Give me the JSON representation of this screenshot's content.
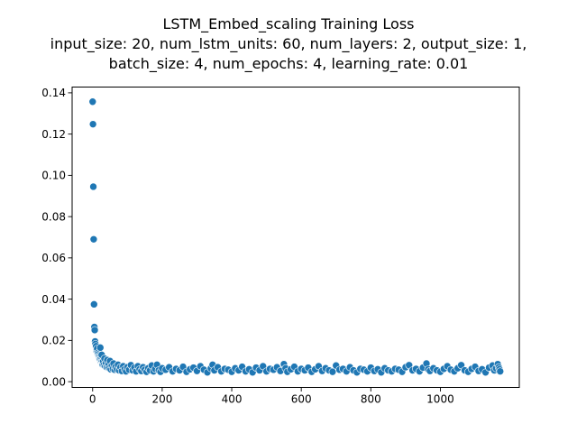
{
  "chart_data": {
    "type": "scatter",
    "title_lines": [
      "LSTM_Embed_scaling Training Loss",
      "input_size: 20, num_lstm_units: 60, num_layers: 2, output_size: 1,",
      "batch_size: 4, num_epochs: 4, learning_rate: 0.01"
    ],
    "xlabel": "",
    "ylabel": "",
    "xlim": [
      -59,
      1227
    ],
    "ylim": [
      -0.0028,
      0.1428
    ],
    "xticks": [
      0,
      200,
      400,
      600,
      800,
      1000
    ],
    "yticks": [
      0.0,
      0.02,
      0.04,
      0.06,
      0.08,
      0.1,
      0.12,
      0.14
    ],
    "ytick_labels": [
      "0.00",
      "0.02",
      "0.04",
      "0.06",
      "0.08",
      "0.10",
      "0.12",
      "0.14"
    ],
    "marker_color": "#1f77b4",
    "marker_edge": "#ffffff",
    "grid": false,
    "points": [
      [
        0,
        0.1357
      ],
      [
        1,
        0.1248
      ],
      [
        2,
        0.0945
      ],
      [
        3,
        0.069
      ],
      [
        4,
        0.0375
      ],
      [
        5,
        0.0265
      ],
      [
        6,
        0.025
      ],
      [
        7,
        0.0195
      ],
      [
        8,
        0.0183
      ],
      [
        9,
        0.017
      ],
      [
        10,
        0.0172
      ],
      [
        11,
        0.0152
      ],
      [
        12,
        0.0145
      ],
      [
        13,
        0.016
      ],
      [
        14,
        0.0138
      ],
      [
        15,
        0.0132
      ],
      [
        16,
        0.0125
      ],
      [
        17,
        0.012
      ],
      [
        18,
        0.0118
      ],
      [
        19,
        0.0112
      ],
      [
        20,
        0.0108
      ],
      [
        21,
        0.0105
      ],
      [
        22,
        0.0165
      ],
      [
        23,
        0.01
      ],
      [
        24,
        0.0095
      ],
      [
        25,
        0.0092
      ],
      [
        26,
        0.013
      ],
      [
        27,
        0.0088
      ],
      [
        28,
        0.0085
      ],
      [
        29,
        0.0082
      ],
      [
        30,
        0.0098
      ],
      [
        32,
        0.008
      ],
      [
        34,
        0.0112
      ],
      [
        36,
        0.0075
      ],
      [
        38,
        0.009
      ],
      [
        40,
        0.007
      ],
      [
        42,
        0.0105
      ],
      [
        44,
        0.0068
      ],
      [
        46,
        0.0085
      ],
      [
        48,
        0.0065
      ],
      [
        50,
        0.01
      ],
      [
        52,
        0.006
      ],
      [
        55,
        0.0078
      ],
      [
        58,
        0.0062
      ],
      [
        60,
        0.0088
      ],
      [
        63,
        0.0058
      ],
      [
        66,
        0.0072
      ],
      [
        70,
        0.006
      ],
      [
        73,
        0.0082
      ],
      [
        76,
        0.0055
      ],
      [
        80,
        0.007
      ],
      [
        84,
        0.0052
      ],
      [
        88,
        0.0075
      ],
      [
        92,
        0.006
      ],
      [
        96,
        0.005
      ],
      [
        100,
        0.007
      ],
      [
        105,
        0.0058
      ],
      [
        110,
        0.008
      ],
      [
        115,
        0.0055
      ],
      [
        120,
        0.0068
      ],
      [
        125,
        0.005
      ],
      [
        130,
        0.0075
      ],
      [
        135,
        0.006
      ],
      [
        140,
        0.0052
      ],
      [
        145,
        0.007
      ],
      [
        150,
        0.0058
      ],
      [
        155,
        0.0048
      ],
      [
        160,
        0.0065
      ],
      [
        165,
        0.0055
      ],
      [
        170,
        0.0078
      ],
      [
        175,
        0.005
      ],
      [
        180,
        0.0062
      ],
      [
        185,
        0.0082
      ],
      [
        190,
        0.0055
      ],
      [
        195,
        0.0048
      ],
      [
        200,
        0.0065
      ],
      [
        210,
        0.0058
      ],
      [
        220,
        0.007
      ],
      [
        230,
        0.005
      ],
      [
        240,
        0.0062
      ],
      [
        250,
        0.0055
      ],
      [
        260,
        0.0072
      ],
      [
        270,
        0.0048
      ],
      [
        280,
        0.006
      ],
      [
        290,
        0.0068
      ],
      [
        300,
        0.0052
      ],
      [
        310,
        0.0075
      ],
      [
        320,
        0.0058
      ],
      [
        330,
        0.0045
      ],
      [
        340,
        0.0065
      ],
      [
        345,
        0.0082
      ],
      [
        350,
        0.0055
      ],
      [
        360,
        0.007
      ],
      [
        370,
        0.005
      ],
      [
        380,
        0.0062
      ],
      [
        390,
        0.0058
      ],
      [
        400,
        0.0048
      ],
      [
        410,
        0.0065
      ],
      [
        420,
        0.0055
      ],
      [
        430,
        0.0072
      ],
      [
        440,
        0.005
      ],
      [
        450,
        0.006
      ],
      [
        460,
        0.0045
      ],
      [
        470,
        0.0068
      ],
      [
        480,
        0.0055
      ],
      [
        490,
        0.0075
      ],
      [
        500,
        0.005
      ],
      [
        510,
        0.0062
      ],
      [
        520,
        0.0058
      ],
      [
        530,
        0.007
      ],
      [
        540,
        0.0052
      ],
      [
        550,
        0.0085
      ],
      [
        555,
        0.0065
      ],
      [
        560,
        0.0048
      ],
      [
        570,
        0.006
      ],
      [
        580,
        0.0072
      ],
      [
        590,
        0.005
      ],
      [
        600,
        0.0062
      ],
      [
        610,
        0.0055
      ],
      [
        620,
        0.0068
      ],
      [
        630,
        0.0048
      ],
      [
        640,
        0.006
      ],
      [
        650,
        0.0075
      ],
      [
        660,
        0.0052
      ],
      [
        670,
        0.0065
      ],
      [
        680,
        0.0055
      ],
      [
        690,
        0.0048
      ],
      [
        700,
        0.0078
      ],
      [
        710,
        0.0058
      ],
      [
        720,
        0.0062
      ],
      [
        730,
        0.005
      ],
      [
        740,
        0.007
      ],
      [
        750,
        0.0055
      ],
      [
        760,
        0.0045
      ],
      [
        770,
        0.0062
      ],
      [
        780,
        0.0058
      ],
      [
        790,
        0.005
      ],
      [
        800,
        0.0068
      ],
      [
        810,
        0.0052
      ],
      [
        820,
        0.006
      ],
      [
        830,
        0.0045
      ],
      [
        840,
        0.0065
      ],
      [
        850,
        0.0055
      ],
      [
        860,
        0.005
      ],
      [
        870,
        0.0062
      ],
      [
        880,
        0.0058
      ],
      [
        890,
        0.0048
      ],
      [
        900,
        0.007
      ],
      [
        910,
        0.008
      ],
      [
        920,
        0.0055
      ],
      [
        930,
        0.0062
      ],
      [
        940,
        0.005
      ],
      [
        950,
        0.0068
      ],
      [
        960,
        0.0088
      ],
      [
        965,
        0.006
      ],
      [
        970,
        0.0052
      ],
      [
        980,
        0.0065
      ],
      [
        990,
        0.0055
      ],
      [
        1000,
        0.0048
      ],
      [
        1010,
        0.0062
      ],
      [
        1020,
        0.0075
      ],
      [
        1030,
        0.0058
      ],
      [
        1040,
        0.005
      ],
      [
        1050,
        0.0065
      ],
      [
        1060,
        0.008
      ],
      [
        1070,
        0.0055
      ],
      [
        1080,
        0.0048
      ],
      [
        1090,
        0.0062
      ],
      [
        1100,
        0.0072
      ],
      [
        1110,
        0.0052
      ],
      [
        1120,
        0.006
      ],
      [
        1130,
        0.0045
      ],
      [
        1140,
        0.0068
      ],
      [
        1150,
        0.0078
      ],
      [
        1155,
        0.0055
      ],
      [
        1160,
        0.0065
      ],
      [
        1165,
        0.0085
      ],
      [
        1168,
        0.007
      ],
      [
        1170,
        0.006
      ],
      [
        1172,
        0.005
      ]
    ]
  }
}
